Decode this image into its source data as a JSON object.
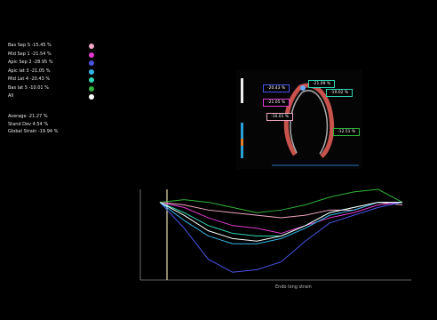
{
  "legend": [
    {
      "label": "Bas Sep S -15.45 %",
      "color": "#f2a7c5"
    },
    {
      "label": "Mid Sep 1 -21.54 %",
      "color": "#e23ad1"
    },
    {
      "label": "Apic Sep 2 -28.95 %",
      "color": "#4a55e8"
    },
    {
      "label": "Apic lat 3 -21.05 %",
      "color": "#35b6ea"
    },
    {
      "label": "Mid Lat 4 -20.43 %",
      "color": "#2fd6b5"
    },
    {
      "label": "Bas lat 5 -10.01 %",
      "color": "#2fb33a"
    },
    {
      "label": "All",
      "color": "#ffffff"
    }
  ],
  "stats": {
    "average": "Average -21.27 %",
    "std_dev": "Stand Dev 4.54 %",
    "global_strain": "Global Strain -19.94 %"
  },
  "segment_labels": [
    {
      "text": "-20.43 %",
      "color": "#4a55e8"
    },
    {
      "text": "-21.05 %",
      "color": "#e23ad1"
    },
    {
      "text": "-10.01 %",
      "color": "#f2a7c5"
    },
    {
      "text": "-21.09 %",
      "color": "#2fd6b5"
    },
    {
      "text": "-19.02 %",
      "color": "#2fd6b5"
    },
    {
      "text": "-12.51 %",
      "color": "#2fb33a"
    }
  ],
  "chart_data": {
    "type": "line",
    "xlabel": "Endo long strain",
    "ylim": [
      -30,
      5
    ],
    "series": [
      {
        "color": "#f2a7c5",
        "values": [
          0,
          -1,
          -3,
          -4,
          -5,
          -6,
          -5,
          -3,
          -3,
          0,
          -1
        ]
      },
      {
        "color": "#e23ad1",
        "values": [
          0,
          -2,
          -6,
          -9,
          -10,
          -12,
          -9,
          -6,
          -4,
          -1,
          0
        ]
      },
      {
        "color": "#4a55e8",
        "values": [
          0,
          -10,
          -22,
          -27,
          -26,
          -23,
          -15,
          -8,
          -5,
          -2,
          0
        ]
      },
      {
        "color": "#35b6ea",
        "values": [
          0,
          -7,
          -13,
          -16,
          -16,
          -14,
          -10,
          -5,
          -3,
          0,
          0
        ]
      },
      {
        "color": "#2fd6b5",
        "values": [
          0,
          -4,
          -9,
          -12,
          -13,
          -13,
          -9,
          -4,
          -2,
          0,
          0
        ]
      },
      {
        "color": "#2fb33a",
        "values": [
          0,
          1,
          0,
          -2,
          -4,
          -3,
          -1,
          2,
          4,
          5,
          0
        ]
      },
      {
        "color": "#ffffff",
        "values": [
          0,
          -5,
          -11,
          -14,
          -15,
          -13,
          -9,
          -4,
          -2,
          0,
          0
        ]
      }
    ]
  }
}
